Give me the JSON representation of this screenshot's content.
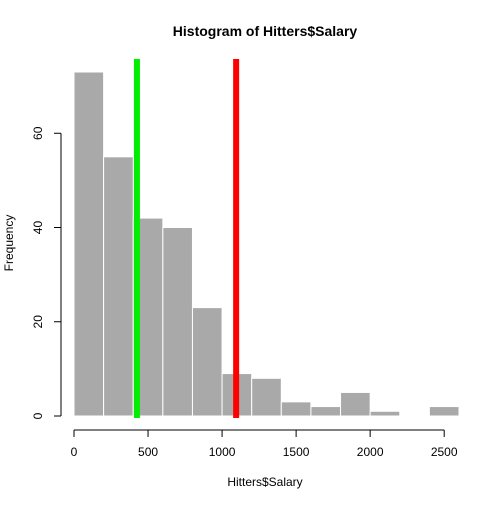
{
  "chart_data": {
    "type": "bar",
    "title": "Histogram of Hitters$Salary",
    "xlabel": "Hitters$Salary",
    "ylabel": "Frequency",
    "bin_width": 200,
    "bins": [
      {
        "from": 0,
        "to": 200,
        "count": 73
      },
      {
        "from": 200,
        "to": 400,
        "count": 55
      },
      {
        "from": 400,
        "to": 600,
        "count": 42
      },
      {
        "from": 600,
        "to": 800,
        "count": 40
      },
      {
        "from": 800,
        "to": 1000,
        "count": 23
      },
      {
        "from": 1000,
        "to": 1200,
        "count": 9
      },
      {
        "from": 1200,
        "to": 1400,
        "count": 8
      },
      {
        "from": 1400,
        "to": 1600,
        "count": 3
      },
      {
        "from": 1600,
        "to": 1800,
        "count": 2
      },
      {
        "from": 1800,
        "to": 2000,
        "count": 5
      },
      {
        "from": 2000,
        "to": 2200,
        "count": 1
      },
      {
        "from": 2200,
        "to": 2400,
        "count": 0
      },
      {
        "from": 2400,
        "to": 2600,
        "count": 2
      }
    ],
    "xlim": [
      0,
      2600
    ],
    "ylim": [
      0,
      75
    ],
    "x_ticks": [
      0,
      500,
      1000,
      1500,
      2000,
      2500
    ],
    "y_ticks": [
      0,
      20,
      40,
      60
    ],
    "bar_fill": "#a9a9a9",
    "bar_border": "#ffffff",
    "reference_lines": [
      {
        "x": 425,
        "color": "#00ee00"
      },
      {
        "x": 1095,
        "color": "#ff0000"
      }
    ],
    "grid": false,
    "legend": "none"
  }
}
